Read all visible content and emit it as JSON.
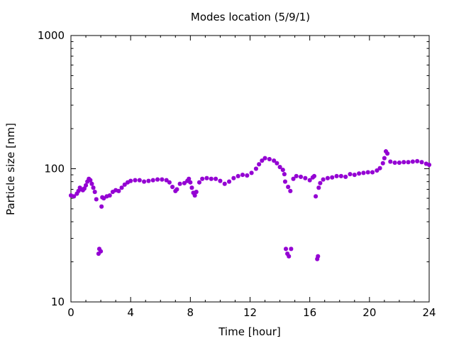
{
  "chart_data": {
    "type": "scatter",
    "title": "Modes location (5/9/1)",
    "xlabel": "Time [hour]",
    "ylabel": "Particle size [nm]",
    "xlim": [
      0,
      24
    ],
    "ylim": [
      10,
      1000
    ],
    "yscale": "log",
    "grid": false,
    "x_ticks": [
      0,
      4,
      8,
      12,
      16,
      20,
      24
    ],
    "x_tick_labels": [
      "0",
      "4",
      "8",
      "12",
      "16",
      "20",
      "24"
    ],
    "y_ticks": [
      10,
      100,
      1000
    ],
    "y_tick_labels": [
      "10",
      "100",
      "1000"
    ],
    "marker_color": "#9400d3",
    "series": [
      {
        "points": [
          [
            0.0,
            63
          ],
          [
            0.2,
            62
          ],
          [
            0.4,
            65
          ],
          [
            0.5,
            68
          ],
          [
            0.6,
            72
          ],
          [
            0.7,
            70
          ],
          [
            0.8,
            69
          ],
          [
            0.9,
            71
          ],
          [
            1.0,
            75
          ],
          [
            1.1,
            80
          ],
          [
            1.2,
            84
          ],
          [
            1.3,
            82
          ],
          [
            1.4,
            77
          ],
          [
            1.5,
            72
          ],
          [
            1.6,
            67
          ],
          [
            1.7,
            59
          ],
          [
            1.85,
            23
          ],
          [
            1.9,
            25
          ],
          [
            2.0,
            24
          ],
          [
            2.05,
            52
          ],
          [
            2.1,
            61
          ],
          [
            2.2,
            60
          ],
          [
            2.4,
            62
          ],
          [
            2.6,
            63
          ],
          [
            2.8,
            67
          ],
          [
            3.0,
            69
          ],
          [
            3.2,
            68
          ],
          [
            3.4,
            72
          ],
          [
            3.6,
            76
          ],
          [
            3.8,
            79
          ],
          [
            4.0,
            81
          ],
          [
            4.3,
            82
          ],
          [
            4.6,
            82
          ],
          [
            4.9,
            80
          ],
          [
            5.2,
            81
          ],
          [
            5.5,
            82
          ],
          [
            5.8,
            83
          ],
          [
            6.1,
            83
          ],
          [
            6.4,
            82
          ],
          [
            6.6,
            79
          ],
          [
            6.8,
            73
          ],
          [
            7.0,
            68
          ],
          [
            7.1,
            70
          ],
          [
            7.3,
            77
          ],
          [
            7.6,
            78
          ],
          [
            7.8,
            81
          ],
          [
            7.9,
            84
          ],
          [
            8.0,
            79
          ],
          [
            8.1,
            72
          ],
          [
            8.2,
            66
          ],
          [
            8.3,
            63
          ],
          [
            8.4,
            67
          ],
          [
            8.6,
            79
          ],
          [
            8.8,
            84
          ],
          [
            9.1,
            85
          ],
          [
            9.4,
            84
          ],
          [
            9.7,
            84
          ],
          [
            10.0,
            81
          ],
          [
            10.3,
            77
          ],
          [
            10.6,
            80
          ],
          [
            10.9,
            85
          ],
          [
            11.2,
            88
          ],
          [
            11.5,
            90
          ],
          [
            11.8,
            89
          ],
          [
            12.1,
            93
          ],
          [
            12.4,
            100
          ],
          [
            12.6,
            108
          ],
          [
            12.8,
            115
          ],
          [
            13.0,
            120
          ],
          [
            13.3,
            118
          ],
          [
            13.6,
            115
          ],
          [
            13.8,
            110
          ],
          [
            14.0,
            103
          ],
          [
            14.2,
            98
          ],
          [
            14.3,
            91
          ],
          [
            14.35,
            80
          ],
          [
            14.4,
            25
          ],
          [
            14.5,
            23
          ],
          [
            14.55,
            73
          ],
          [
            14.6,
            22
          ],
          [
            14.7,
            68
          ],
          [
            14.75,
            25
          ],
          [
            14.9,
            84
          ],
          [
            15.1,
            88
          ],
          [
            15.4,
            87
          ],
          [
            15.7,
            85
          ],
          [
            16.0,
            82
          ],
          [
            16.2,
            86
          ],
          [
            16.3,
            88
          ],
          [
            16.4,
            62
          ],
          [
            16.5,
            21
          ],
          [
            16.55,
            22
          ],
          [
            16.6,
            72
          ],
          [
            16.7,
            78
          ],
          [
            16.9,
            83
          ],
          [
            17.2,
            85
          ],
          [
            17.5,
            86
          ],
          [
            17.8,
            88
          ],
          [
            18.1,
            88
          ],
          [
            18.4,
            87
          ],
          [
            18.7,
            91
          ],
          [
            19.0,
            90
          ],
          [
            19.3,
            92
          ],
          [
            19.6,
            93
          ],
          [
            19.9,
            94
          ],
          [
            20.2,
            94
          ],
          [
            20.5,
            97
          ],
          [
            20.7,
            101
          ],
          [
            20.9,
            110
          ],
          [
            21.0,
            120
          ],
          [
            21.1,
            135
          ],
          [
            21.2,
            130
          ],
          [
            21.4,
            113
          ],
          [
            21.7,
            111
          ],
          [
            22.0,
            111
          ],
          [
            22.3,
            112
          ],
          [
            22.6,
            112
          ],
          [
            22.9,
            113
          ],
          [
            23.2,
            114
          ],
          [
            23.5,
            112
          ],
          [
            23.8,
            109
          ],
          [
            24.0,
            107
          ]
        ]
      }
    ]
  }
}
